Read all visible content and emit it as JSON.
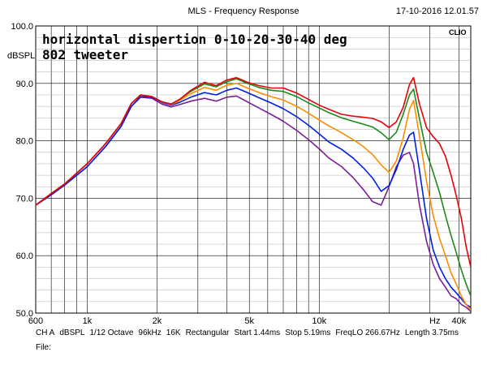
{
  "window": {
    "title": "MLS - Frequency Response",
    "timestamp": "17-10-2016 12.01.57"
  },
  "brand": "CLIO",
  "footer": {
    "items": [
      "CH A",
      "dBSPL",
      "1/12 Octave",
      "96kHz",
      "16K",
      "Rectangular",
      "Start 1.44ms",
      "Stop 5.19ms",
      "FreqLO 266.67Hz",
      "Length 3.75ms"
    ],
    "file_label": "File:"
  },
  "chart_data": {
    "type": "line",
    "title": "horizontal dispertion 0-10-20-30-40 deg",
    "subtitle": "802 tweeter",
    "ylabel": "dBSPL",
    "xlabel": "Hz",
    "x_scale": "log",
    "xlim": [
      600,
      45000
    ],
    "ylim": [
      50,
      100
    ],
    "grid": true,
    "legend": "none",
    "x_ticks": [
      {
        "value": 600,
        "label": "600"
      },
      {
        "value": 1000,
        "label": "1k"
      },
      {
        "value": 2000,
        "label": "2k"
      },
      {
        "value": 5000,
        "label": "5k"
      },
      {
        "value": 10000,
        "label": "10k"
      },
      {
        "value": 40000,
        "label": "40k"
      }
    ],
    "y_ticks": [
      {
        "value": 100,
        "label": "100.0"
      },
      {
        "value": 90,
        "label": "90.0"
      },
      {
        "value": 80,
        "label": "80.0"
      },
      {
        "value": 70,
        "label": "70.0"
      },
      {
        "value": 60,
        "label": "60.0"
      },
      {
        "value": 50,
        "label": "50.0"
      }
    ],
    "series": [
      {
        "color": "#e8000b",
        "points": [
          [
            600,
            68.8
          ],
          [
            700,
            70.8
          ],
          [
            800,
            72.5
          ],
          [
            1000,
            76
          ],
          [
            1200,
            79.5
          ],
          [
            1400,
            83
          ],
          [
            1550,
            86.5
          ],
          [
            1700,
            88
          ],
          [
            1900,
            87.7
          ],
          [
            2100,
            86.8
          ],
          [
            2300,
            86.4
          ],
          [
            2500,
            87.2
          ],
          [
            2800,
            88.8
          ],
          [
            3200,
            90.2
          ],
          [
            3600,
            89.6
          ],
          [
            4000,
            90.6
          ],
          [
            4400,
            91
          ],
          [
            4900,
            90.2
          ],
          [
            5500,
            89.6
          ],
          [
            6200,
            89.2
          ],
          [
            7000,
            89.2
          ],
          [
            8000,
            88.3
          ],
          [
            9000,
            87.2
          ],
          [
            10000,
            86.2
          ],
          [
            11000,
            85.5
          ],
          [
            12500,
            84.6
          ],
          [
            14000,
            84.3
          ],
          [
            15500,
            84.1
          ],
          [
            17000,
            83.9
          ],
          [
            18500,
            83.3
          ],
          [
            20000,
            82.3
          ],
          [
            21500,
            83.3
          ],
          [
            23000,
            85.8
          ],
          [
            24500,
            89.8
          ],
          [
            25500,
            91
          ],
          [
            27000,
            86.5
          ],
          [
            29000,
            82.3
          ],
          [
            31000,
            80.7
          ],
          [
            33000,
            79.5
          ],
          [
            35000,
            77.3
          ],
          [
            37000,
            74
          ],
          [
            39000,
            70.4
          ],
          [
            41000,
            66.5
          ],
          [
            43000,
            61.5
          ],
          [
            45000,
            58
          ]
        ]
      },
      {
        "color": "#1a8a1a",
        "points": [
          [
            600,
            68.8
          ],
          [
            700,
            70.8
          ],
          [
            800,
            72.5
          ],
          [
            1000,
            76
          ],
          [
            1200,
            79.5
          ],
          [
            1400,
            83
          ],
          [
            1550,
            86.5
          ],
          [
            1700,
            88
          ],
          [
            1900,
            87.7
          ],
          [
            2100,
            86.8
          ],
          [
            2300,
            86.4
          ],
          [
            2500,
            87.2
          ],
          [
            2800,
            88.6
          ],
          [
            3200,
            89.9
          ],
          [
            3600,
            89.4
          ],
          [
            4000,
            90.3
          ],
          [
            4400,
            90.8
          ],
          [
            4900,
            90
          ],
          [
            5500,
            89.3
          ],
          [
            6200,
            88.8
          ],
          [
            7000,
            88.6
          ],
          [
            8000,
            87.7
          ],
          [
            9000,
            86.6
          ],
          [
            10000,
            85.7
          ],
          [
            11000,
            84.9
          ],
          [
            12500,
            84
          ],
          [
            14000,
            83.4
          ],
          [
            15500,
            82.9
          ],
          [
            17000,
            82.4
          ],
          [
            18500,
            81.4
          ],
          [
            20000,
            80.2
          ],
          [
            21500,
            81.5
          ],
          [
            23000,
            84.6
          ],
          [
            24500,
            88
          ],
          [
            25500,
            89
          ],
          [
            27000,
            84
          ],
          [
            29000,
            78
          ],
          [
            31000,
            74.5
          ],
          [
            33000,
            71
          ],
          [
            35000,
            67
          ],
          [
            37000,
            63.5
          ],
          [
            39000,
            60.5
          ],
          [
            41000,
            57.5
          ],
          [
            43000,
            55
          ],
          [
            45000,
            53
          ]
        ]
      },
      {
        "color": "#ff8c00",
        "points": [
          [
            600,
            68.8
          ],
          [
            700,
            70.8
          ],
          [
            800,
            72.5
          ],
          [
            1000,
            76
          ],
          [
            1200,
            79.5
          ],
          [
            1400,
            83
          ],
          [
            1550,
            86.5
          ],
          [
            1700,
            88
          ],
          [
            1900,
            87.7
          ],
          [
            2100,
            86.8
          ],
          [
            2300,
            86.3
          ],
          [
            2500,
            87
          ],
          [
            2800,
            88.2
          ],
          [
            3200,
            89.3
          ],
          [
            3600,
            88.8
          ],
          [
            4000,
            89.7
          ],
          [
            4400,
            90
          ],
          [
            4900,
            89.2
          ],
          [
            5500,
            88.4
          ],
          [
            6200,
            87.7
          ],
          [
            7000,
            87.1
          ],
          [
            8000,
            86
          ],
          [
            9000,
            84.8
          ],
          [
            10000,
            83.6
          ],
          [
            11000,
            82.6
          ],
          [
            12500,
            81.4
          ],
          [
            14000,
            80.2
          ],
          [
            15500,
            79
          ],
          [
            17000,
            77.6
          ],
          [
            18500,
            75.8
          ],
          [
            20000,
            74.5
          ],
          [
            21500,
            76.5
          ],
          [
            23000,
            80.5
          ],
          [
            24500,
            85.5
          ],
          [
            25500,
            87
          ],
          [
            27000,
            81
          ],
          [
            29000,
            73
          ],
          [
            31000,
            67
          ],
          [
            33000,
            63
          ],
          [
            35000,
            60
          ],
          [
            37000,
            57
          ],
          [
            39000,
            55
          ],
          [
            41000,
            53
          ],
          [
            43000,
            51.5
          ],
          [
            45000,
            50.5
          ]
        ]
      },
      {
        "color": "#0020e0",
        "points": [
          [
            600,
            68.8
          ],
          [
            700,
            70.6
          ],
          [
            800,
            72.3
          ],
          [
            1000,
            75.5
          ],
          [
            1200,
            79
          ],
          [
            1400,
            82.5
          ],
          [
            1550,
            86
          ],
          [
            1700,
            87.7
          ],
          [
            1900,
            87.6
          ],
          [
            2100,
            86.7
          ],
          [
            2300,
            86.2
          ],
          [
            2500,
            86.7
          ],
          [
            2800,
            87.6
          ],
          [
            3200,
            88.4
          ],
          [
            3600,
            88
          ],
          [
            4000,
            88.8
          ],
          [
            4400,
            89.2
          ],
          [
            4900,
            88.4
          ],
          [
            5500,
            87.5
          ],
          [
            6200,
            86.6
          ],
          [
            7000,
            85.6
          ],
          [
            8000,
            84.2
          ],
          [
            9000,
            82.7
          ],
          [
            10000,
            81.2
          ],
          [
            11000,
            79.8
          ],
          [
            12500,
            78.5
          ],
          [
            14000,
            77
          ],
          [
            15500,
            75.3
          ],
          [
            17000,
            73.5
          ],
          [
            18500,
            71.2
          ],
          [
            20000,
            72.2
          ],
          [
            21500,
            75
          ],
          [
            23000,
            78.5
          ],
          [
            24500,
            81
          ],
          [
            25500,
            81.5
          ],
          [
            27000,
            75
          ],
          [
            29000,
            66.5
          ],
          [
            31000,
            61
          ],
          [
            33000,
            58
          ],
          [
            35000,
            56
          ],
          [
            37000,
            54.5
          ],
          [
            39000,
            53.5
          ],
          [
            41000,
            52.5
          ],
          [
            43000,
            51.5
          ],
          [
            45000,
            51
          ]
        ]
      },
      {
        "color": "#7a1f9a",
        "points": [
          [
            600,
            68.8
          ],
          [
            700,
            70.6
          ],
          [
            800,
            72.3
          ],
          [
            1000,
            75.5
          ],
          [
            1200,
            79
          ],
          [
            1400,
            82.5
          ],
          [
            1550,
            86
          ],
          [
            1700,
            87.6
          ],
          [
            1900,
            87.4
          ],
          [
            2100,
            86.4
          ],
          [
            2300,
            85.9
          ],
          [
            2500,
            86.3
          ],
          [
            2800,
            86.9
          ],
          [
            3200,
            87.4
          ],
          [
            3600,
            86.9
          ],
          [
            4000,
            87.6
          ],
          [
            4400,
            87.8
          ],
          [
            4900,
            86.8
          ],
          [
            5500,
            85.7
          ],
          [
            6200,
            84.6
          ],
          [
            7000,
            83.4
          ],
          [
            8000,
            81.8
          ],
          [
            9000,
            80.2
          ],
          [
            10000,
            78.6
          ],
          [
            11000,
            77
          ],
          [
            12500,
            75.5
          ],
          [
            14000,
            73.6
          ],
          [
            15500,
            71.5
          ],
          [
            17000,
            69.4
          ],
          [
            18500,
            68.8
          ],
          [
            20000,
            72
          ],
          [
            21500,
            75.5
          ],
          [
            23000,
            77.5
          ],
          [
            24500,
            78
          ],
          [
            25500,
            76
          ],
          [
            27000,
            69
          ],
          [
            29000,
            62.5
          ],
          [
            31000,
            58.5
          ],
          [
            33000,
            56
          ],
          [
            35000,
            54.5
          ],
          [
            37000,
            53
          ],
          [
            39000,
            52.5
          ],
          [
            41000,
            51.5
          ],
          [
            43000,
            51
          ],
          [
            45000,
            50.3
          ]
        ]
      }
    ]
  }
}
